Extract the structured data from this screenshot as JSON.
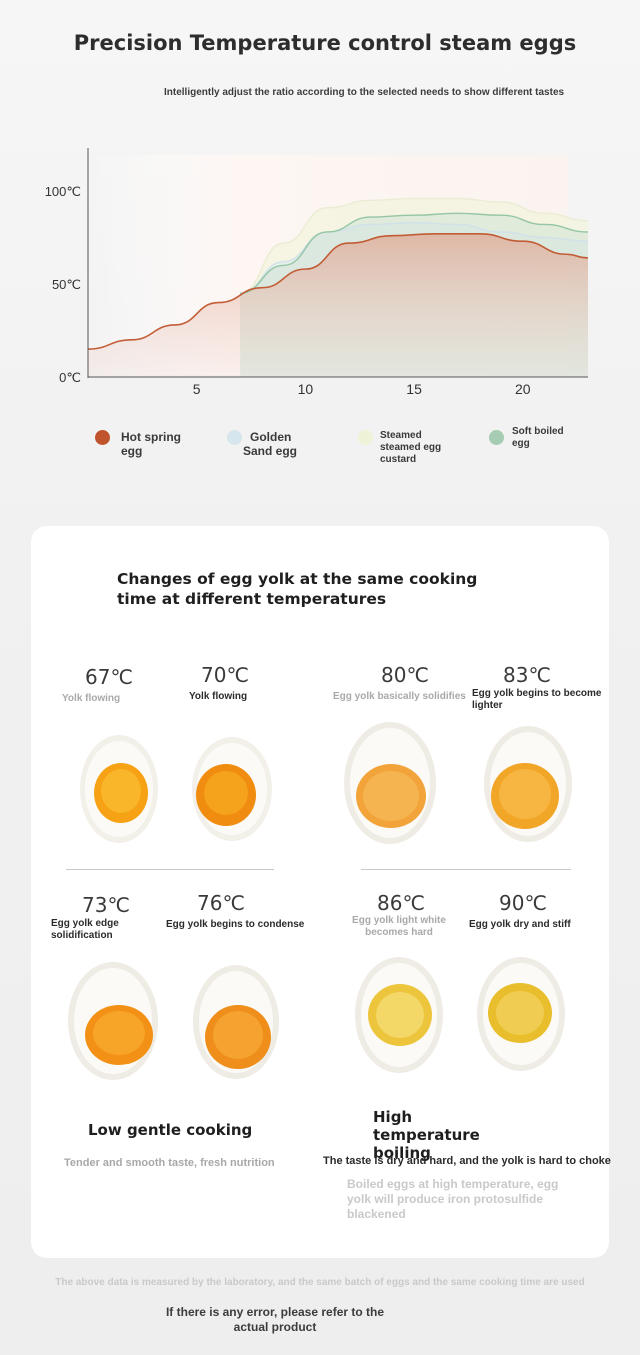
{
  "header": {
    "title": "Precision Temperature control steam eggs",
    "subtitle": "Intelligently adjust the ratio according to the selected needs to show different tastes"
  },
  "chart_data": {
    "type": "area",
    "x_ticks": [
      5,
      10,
      15,
      20
    ],
    "y_ticks": [
      "0℃",
      "50℃",
      "100℃"
    ],
    "xlim": [
      0,
      23
    ],
    "ylim": [
      0,
      120
    ],
    "grid": false,
    "legend_position": "bottom",
    "series": [
      {
        "name": "Hot spring egg",
        "color": "#c0552d",
        "x": [
          0,
          2,
          4,
          6,
          8,
          10,
          12,
          14,
          16,
          18,
          20,
          22,
          23
        ],
        "y": [
          15,
          20,
          28,
          40,
          48,
          58,
          72,
          76,
          77,
          77,
          73,
          66,
          64
        ]
      },
      {
        "name": "Golden Sand egg",
        "color": "#cfe0ea",
        "x": [
          7,
          9,
          11,
          13,
          15,
          17,
          19,
          21,
          23
        ],
        "y": [
          45,
          62,
          78,
          82,
          83,
          82,
          78,
          75,
          73
        ]
      },
      {
        "name": "Steamed steamed egg custard",
        "color": "#e9ecd2",
        "x": [
          7,
          9,
          11,
          13,
          15,
          17,
          19,
          21,
          23
        ],
        "y": [
          45,
          72,
          91,
          95,
          96,
          96,
          94,
          88,
          84
        ]
      },
      {
        "name": "Soft boiled egg",
        "color": "#8fc3a1",
        "x": [
          7,
          9,
          11,
          13,
          15,
          17,
          19,
          21,
          23
        ],
        "y": [
          45,
          60,
          78,
          86,
          87,
          88,
          87,
          82,
          78
        ]
      }
    ]
  },
  "legend": [
    {
      "label": "Hot spring egg",
      "color": "#c0552d"
    },
    {
      "label": "Golden Sand egg",
      "color": "#d6e6ee"
    },
    {
      "label": "Steamed steamed egg custard",
      "color": "#eef2d6"
    },
    {
      "label": "Soft boiled egg",
      "color": "#a6cdb3"
    }
  ],
  "panel": {
    "title": "Changes of egg yolk at the same cooking time at different temperatures",
    "eggs": [
      {
        "temp": "67℃",
        "desc": "Yolk flowing"
      },
      {
        "temp": "70℃",
        "desc": "Yolk flowing"
      },
      {
        "temp": "80℃",
        "desc": "Egg yolk basically solidifies"
      },
      {
        "temp": "83℃",
        "desc": "Egg yolk begins to become lighter"
      },
      {
        "temp": "73℃",
        "desc": "Egg yolk edge solidification"
      },
      {
        "temp": "76℃",
        "desc": "Egg yolk begins to condense"
      },
      {
        "temp": "86℃",
        "desc": "Egg yolk light white becomes hard"
      },
      {
        "temp": "90℃",
        "desc": "Egg yolk dry and stiff"
      }
    ],
    "low": {
      "title": "Low gentle cooking",
      "note": "Tender and smooth taste, fresh nutrition"
    },
    "high": {
      "title": "High temperature boiling",
      "note": "The taste is dry and hard, and the yolk is hard to choke",
      "warning": "Boiled eggs at high temperature, egg yolk will produce iron protosulfide blackened"
    }
  },
  "footer": {
    "disclaimer": "The above data is measured by the laboratory, and the same batch of eggs and the same cooking time are used",
    "note": "If there is any error, please refer to the actual product"
  }
}
